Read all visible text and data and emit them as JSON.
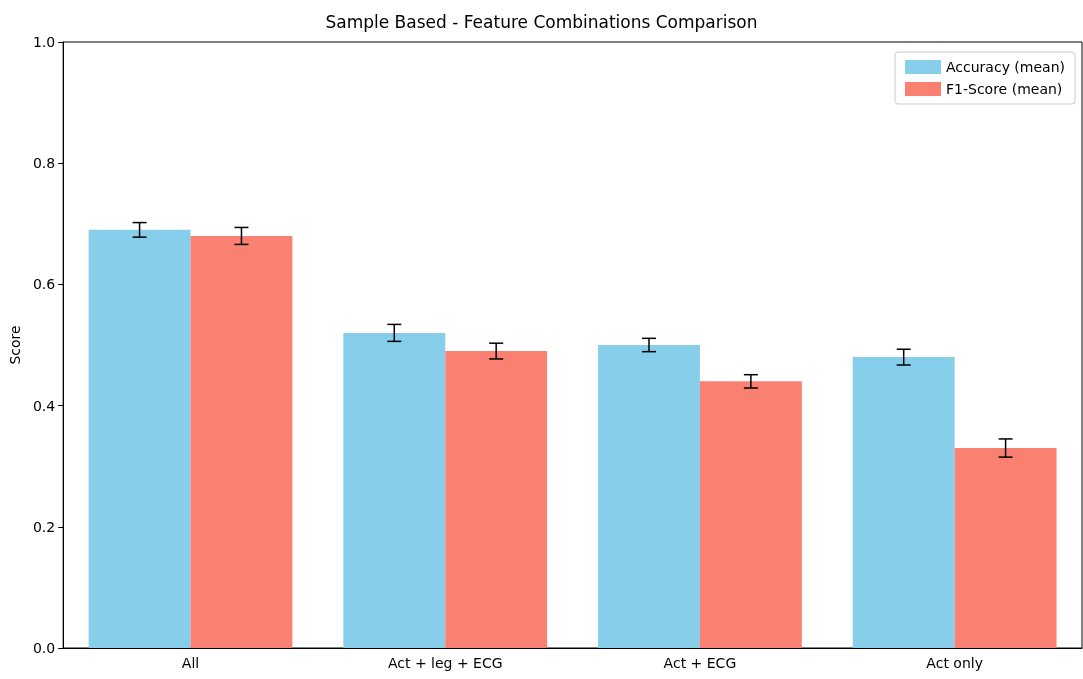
{
  "chart_data": {
    "type": "bar",
    "title": "Sample Based - Feature Combinations Comparison",
    "ylabel": "Score",
    "categories": [
      "All",
      "Act + leg + ECG",
      "Act + ECG",
      "Act only"
    ],
    "series": [
      {
        "name": "Accuracy (mean)",
        "color": "#87ceeb",
        "values": [
          0.69,
          0.52,
          0.5,
          0.48
        ],
        "errors": [
          0.012,
          0.014,
          0.011,
          0.013
        ]
      },
      {
        "name": "F1-Score (mean)",
        "color": "#fa8072",
        "values": [
          0.68,
          0.49,
          0.44,
          0.33
        ],
        "errors": [
          0.014,
          0.013,
          0.011,
          0.015
        ]
      }
    ],
    "ylim": [
      0,
      1
    ],
    "yticks": [
      {
        "value": 0,
        "label": "0.0"
      },
      {
        "value": 0.2,
        "label": "0.2"
      },
      {
        "value": 0.4,
        "label": "0.4"
      },
      {
        "value": 0.6,
        "label": "0.6"
      },
      {
        "value": 0.8,
        "label": "0.8"
      },
      {
        "value": 1,
        "label": "1.0"
      }
    ],
    "grid": false,
    "legend": "top right"
  }
}
